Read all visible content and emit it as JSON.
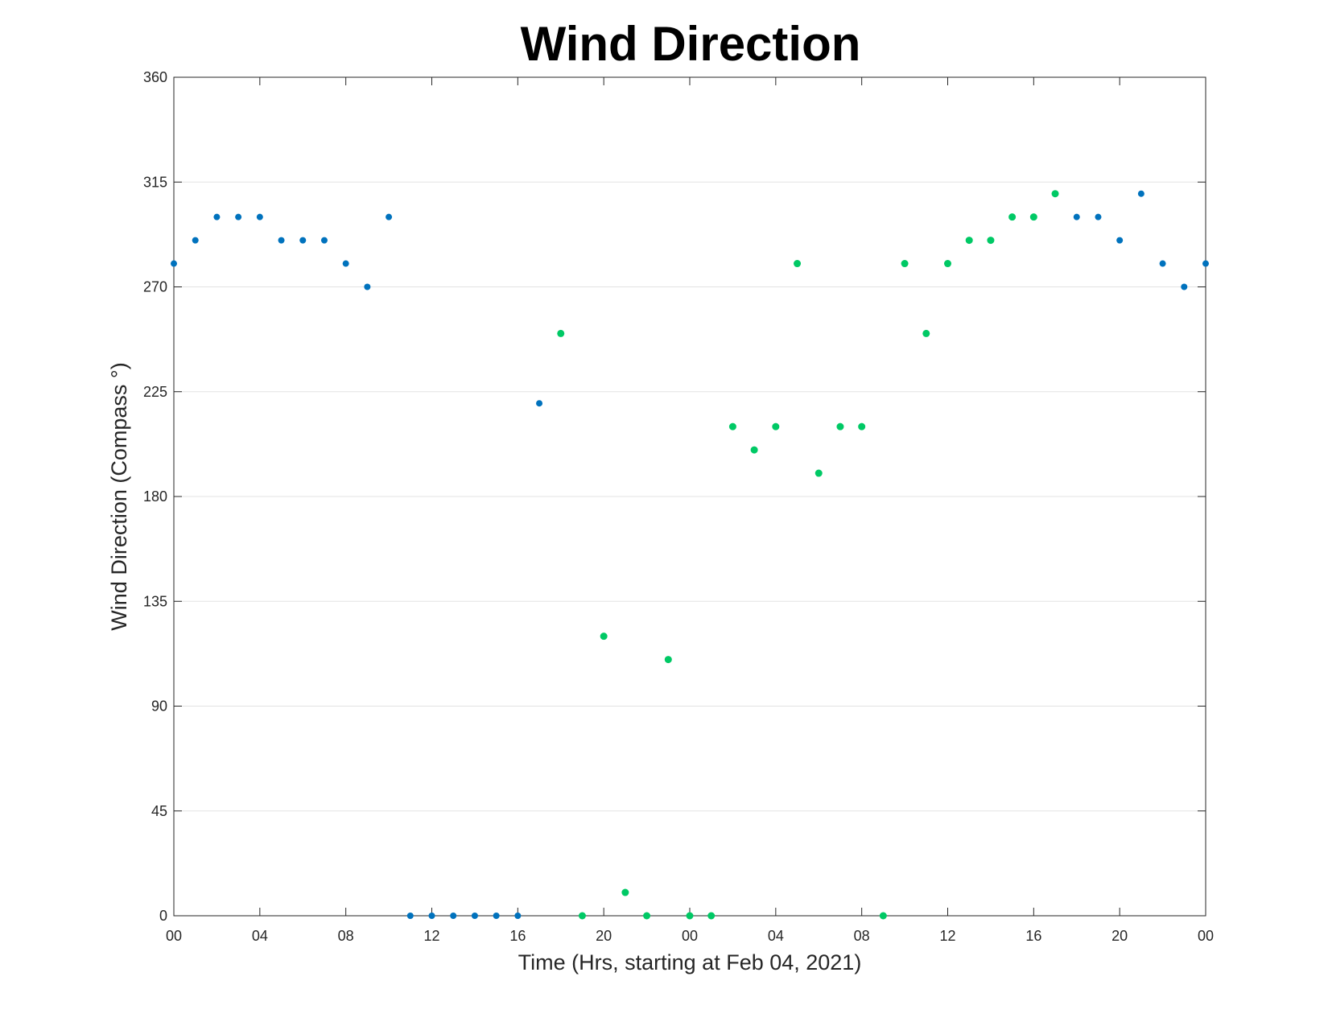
{
  "chart_data": {
    "type": "scatter",
    "title": "Wind Direction",
    "xlabel": "Time (Hrs, starting at Feb 04, 2021)",
    "ylabel": "Wind Direction (Compass °)",
    "ylim": [
      0,
      360
    ],
    "yticks": [
      0,
      45,
      90,
      135,
      180,
      225,
      270,
      315,
      360
    ],
    "xlim_hours": [
      0,
      48
    ],
    "xtick_hours": [
      0,
      4,
      8,
      12,
      16,
      20,
      24,
      28,
      32,
      36,
      40,
      44,
      48
    ],
    "xtick_labels": [
      "00",
      "04",
      "08",
      "12",
      "16",
      "20",
      "00",
      "04",
      "08",
      "12",
      "16",
      "20",
      "00"
    ],
    "grid": true,
    "series": [
      {
        "color": "#0072bd",
        "points": [
          [
            0,
            280
          ],
          [
            1,
            290
          ],
          [
            2,
            300
          ],
          [
            3,
            300
          ],
          [
            4,
            300
          ],
          [
            5,
            290
          ],
          [
            6,
            290
          ],
          [
            7,
            290
          ],
          [
            8,
            280
          ],
          [
            9,
            270
          ],
          [
            10,
            300
          ],
          [
            11,
            0
          ],
          [
            12,
            0
          ],
          [
            13,
            0
          ],
          [
            14,
            0
          ],
          [
            15,
            0
          ],
          [
            16,
            0
          ],
          [
            17,
            220
          ],
          [
            42,
            300
          ],
          [
            43,
            300
          ],
          [
            44,
            290
          ],
          [
            45,
            310
          ],
          [
            46,
            280
          ],
          [
            47,
            270
          ],
          [
            48,
            280
          ]
        ]
      },
      {
        "color": "#00c965",
        "points": [
          [
            18,
            250
          ],
          [
            19,
            0
          ],
          [
            20,
            120
          ],
          [
            21,
            10
          ],
          [
            22,
            0
          ],
          [
            23,
            110
          ],
          [
            24,
            0
          ],
          [
            25,
            0
          ],
          [
            26,
            210
          ],
          [
            27,
            200
          ],
          [
            28,
            210
          ],
          [
            29,
            280
          ],
          [
            30,
            190
          ],
          [
            31,
            210
          ],
          [
            32,
            210
          ],
          [
            33,
            0
          ],
          [
            34,
            280
          ],
          [
            35,
            250
          ],
          [
            36,
            280
          ],
          [
            37,
            290
          ],
          [
            38,
            290
          ],
          [
            39,
            300
          ],
          [
            40,
            300
          ],
          [
            41,
            310
          ]
        ]
      }
    ]
  }
}
